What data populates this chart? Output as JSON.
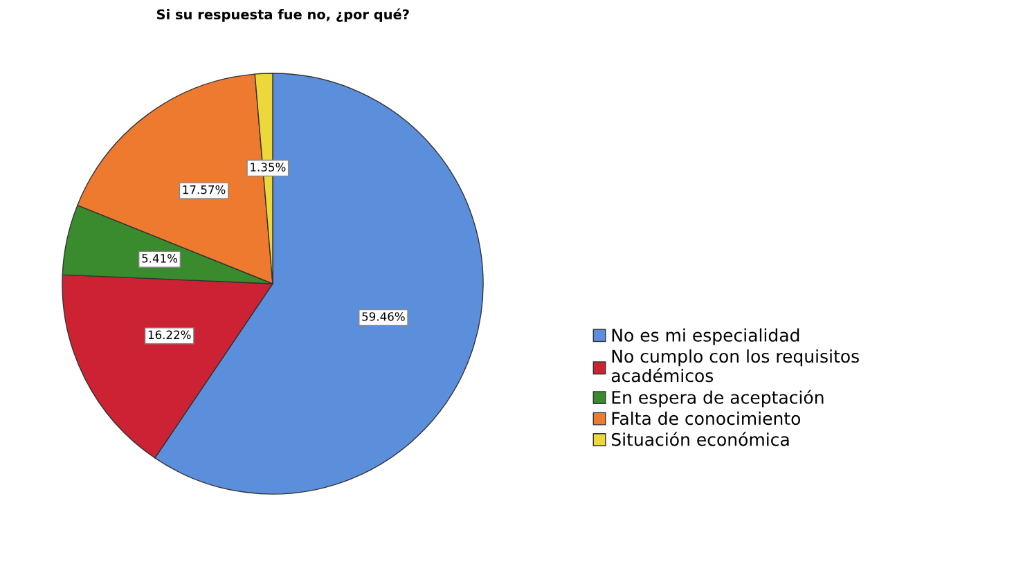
{
  "chart_data": {
    "type": "pie",
    "title": "Si su respuesta fue no, ¿por qué?",
    "categories": [
      "No es mi especialidad",
      "No cumplo con los requisitos\nacadémicos",
      "En espera de aceptación",
      "Falta de conocimiento",
      "Situación económica"
    ],
    "values": [
      59.46,
      16.22,
      5.41,
      17.57,
      1.35
    ],
    "colors": [
      "#5b8fdc",
      "#cc2234",
      "#3a8a2e",
      "#ee7a30",
      "#ecd83a"
    ],
    "value_labels": [
      "59.46%",
      "16.22%",
      "5.41%",
      "17.57%",
      "1.35%"
    ],
    "legend": "right"
  }
}
